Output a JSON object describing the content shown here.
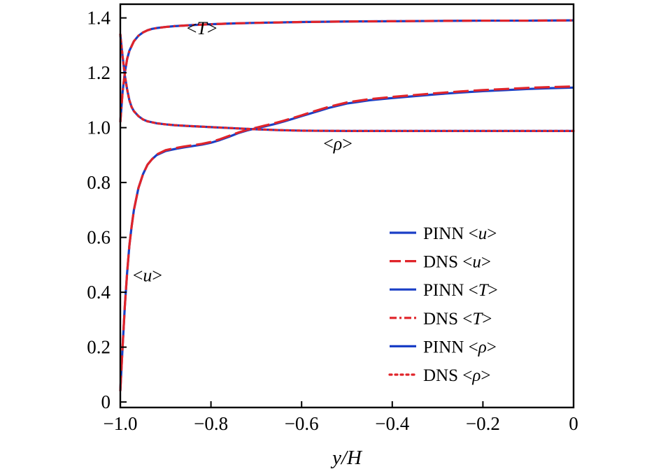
{
  "chart_data": {
    "type": "line",
    "title": "",
    "xlabel": "y/H",
    "ylabel": "",
    "xlim": [
      -1.0,
      0.0
    ],
    "ylim": [
      -0.02,
      1.45
    ],
    "grid": false,
    "legend_position": "bottom-right",
    "xticks": [
      {
        "value": -1.0,
        "label": "−1.0"
      },
      {
        "value": -0.8,
        "label": "−0.8"
      },
      {
        "value": -0.6,
        "label": "−0.6"
      },
      {
        "value": -0.4,
        "label": "−0.4"
      },
      {
        "value": -0.2,
        "label": "−0.2"
      },
      {
        "value": 0.0,
        "label": "0"
      }
    ],
    "yticks": [
      {
        "value": 0.0,
        "label": "0"
      },
      {
        "value": 0.2,
        "label": "0.2"
      },
      {
        "value": 0.4,
        "label": "0.4"
      },
      {
        "value": 0.6,
        "label": "0.6"
      },
      {
        "value": 0.8,
        "label": "0.8"
      },
      {
        "value": 1.0,
        "label": "1.0"
      },
      {
        "value": 1.2,
        "label": "1.2"
      },
      {
        "value": 1.4,
        "label": "1.4"
      }
    ],
    "series": [
      {
        "name": "PINN <u>",
        "legend_base": "PINN",
        "legend_var": "u",
        "color": "#1a3fc6",
        "style": "solid",
        "width": 3.2,
        "curve": "u",
        "x": [
          -1.0,
          -0.995,
          -0.99,
          -0.985,
          -0.98,
          -0.975,
          -0.97,
          -0.96,
          -0.95,
          -0.94,
          -0.93,
          -0.92,
          -0.9,
          -0.88,
          -0.86,
          -0.84,
          -0.82,
          -0.8,
          -0.78,
          -0.76,
          -0.74,
          -0.72,
          -0.7,
          -0.68,
          -0.66,
          -0.64,
          -0.62,
          -0.6,
          -0.58,
          -0.56,
          -0.54,
          -0.52,
          -0.5,
          -0.45,
          -0.4,
          -0.35,
          -0.3,
          -0.25,
          -0.2,
          -0.15,
          -0.1,
          -0.05,
          0.0
        ],
        "y": [
          0.04,
          0.2,
          0.35,
          0.47,
          0.57,
          0.64,
          0.7,
          0.78,
          0.83,
          0.865,
          0.885,
          0.9,
          0.915,
          0.922,
          0.928,
          0.933,
          0.938,
          0.945,
          0.955,
          0.967,
          0.98,
          0.99,
          0.998,
          1.005,
          1.013,
          1.022,
          1.032,
          1.042,
          1.052,
          1.062,
          1.072,
          1.08,
          1.088,
          1.1,
          1.108,
          1.115,
          1.122,
          1.128,
          1.133,
          1.137,
          1.141,
          1.144,
          1.146
        ]
      },
      {
        "name": "DNS <u>",
        "legend_base": "DNS",
        "legend_var": "u",
        "color": "#e0242a",
        "style": "longdash",
        "width": 3.2,
        "curve": "u",
        "x": [
          -1.0,
          -0.995,
          -0.99,
          -0.985,
          -0.98,
          -0.975,
          -0.97,
          -0.96,
          -0.95,
          -0.94,
          -0.93,
          -0.92,
          -0.9,
          -0.88,
          -0.86,
          -0.84,
          -0.82,
          -0.8,
          -0.78,
          -0.76,
          -0.74,
          -0.72,
          -0.7,
          -0.68,
          -0.66,
          -0.64,
          -0.62,
          -0.6,
          -0.58,
          -0.56,
          -0.54,
          -0.52,
          -0.5,
          -0.45,
          -0.4,
          -0.35,
          -0.3,
          -0.25,
          -0.2,
          -0.15,
          -0.1,
          -0.05,
          0.0
        ],
        "y": [
          0.04,
          0.2,
          0.35,
          0.47,
          0.57,
          0.64,
          0.7,
          0.78,
          0.83,
          0.865,
          0.885,
          0.902,
          0.918,
          0.925,
          0.931,
          0.936,
          0.941,
          0.948,
          0.958,
          0.97,
          0.982,
          0.992,
          1.0,
          1.008,
          1.016,
          1.025,
          1.035,
          1.045,
          1.056,
          1.066,
          1.076,
          1.084,
          1.092,
          1.104,
          1.112,
          1.119,
          1.126,
          1.132,
          1.137,
          1.141,
          1.145,
          1.148,
          1.15
        ]
      },
      {
        "name": "PINN <T>",
        "legend_base": "PINN",
        "legend_var": "T",
        "color": "#1a3fc6",
        "style": "solid",
        "width": 3.2,
        "curve": "T",
        "x": [
          -1.0,
          -0.995,
          -0.99,
          -0.985,
          -0.98,
          -0.97,
          -0.96,
          -0.95,
          -0.94,
          -0.93,
          -0.92,
          -0.9,
          -0.88,
          -0.86,
          -0.84,
          -0.8,
          -0.75,
          -0.7,
          -0.6,
          -0.5,
          -0.4,
          -0.3,
          -0.2,
          -0.1,
          0.0
        ],
        "y": [
          1.02,
          1.13,
          1.2,
          1.25,
          1.28,
          1.315,
          1.335,
          1.347,
          1.355,
          1.36,
          1.363,
          1.367,
          1.37,
          1.372,
          1.374,
          1.377,
          1.38,
          1.382,
          1.385,
          1.387,
          1.388,
          1.389,
          1.39,
          1.39,
          1.391
        ]
      },
      {
        "name": "DNS <T>",
        "legend_base": "DNS",
        "legend_var": "T",
        "color": "#e0242a",
        "style": "dashdot",
        "width": 3.2,
        "curve": "T",
        "x": [
          -1.0,
          -0.995,
          -0.99,
          -0.985,
          -0.98,
          -0.97,
          -0.96,
          -0.95,
          -0.94,
          -0.93,
          -0.92,
          -0.9,
          -0.88,
          -0.86,
          -0.84,
          -0.8,
          -0.75,
          -0.7,
          -0.6,
          -0.5,
          -0.4,
          -0.3,
          -0.2,
          -0.1,
          0.0
        ],
        "y": [
          1.02,
          1.13,
          1.2,
          1.25,
          1.28,
          1.315,
          1.335,
          1.347,
          1.355,
          1.36,
          1.363,
          1.367,
          1.37,
          1.372,
          1.374,
          1.377,
          1.38,
          1.382,
          1.385,
          1.387,
          1.388,
          1.389,
          1.39,
          1.39,
          1.391
        ]
      },
      {
        "name": "PINN <ρ>",
        "legend_base": "PINN",
        "legend_var": "ρ",
        "color": "#1a3fc6",
        "style": "solid",
        "width": 3.2,
        "curve": "rho",
        "x": [
          -1.0,
          -0.995,
          -0.99,
          -0.985,
          -0.98,
          -0.975,
          -0.97,
          -0.96,
          -0.95,
          -0.94,
          -0.92,
          -0.9,
          -0.88,
          -0.85,
          -0.8,
          -0.75,
          -0.7,
          -0.65,
          -0.6,
          -0.5,
          -0.4,
          -0.3,
          -0.2,
          -0.1,
          0.0
        ],
        "y": [
          1.34,
          1.26,
          1.19,
          1.14,
          1.1,
          1.075,
          1.06,
          1.042,
          1.03,
          1.023,
          1.016,
          1.012,
          1.009,
          1.006,
          1.002,
          0.998,
          0.994,
          0.991,
          0.989,
          0.988,
          0.988,
          0.988,
          0.988,
          0.988,
          0.988
        ]
      },
      {
        "name": "DNS <ρ>",
        "legend_base": "DNS",
        "legend_var": "ρ",
        "color": "#e0242a",
        "style": "dotted",
        "width": 3.2,
        "curve": "rho",
        "x": [
          -1.0,
          -0.995,
          -0.99,
          -0.985,
          -0.98,
          -0.975,
          -0.97,
          -0.96,
          -0.95,
          -0.94,
          -0.92,
          -0.9,
          -0.88,
          -0.85,
          -0.8,
          -0.75,
          -0.7,
          -0.65,
          -0.6,
          -0.5,
          -0.4,
          -0.3,
          -0.2,
          -0.1,
          0.0
        ],
        "y": [
          1.34,
          1.26,
          1.19,
          1.14,
          1.1,
          1.075,
          1.06,
          1.042,
          1.03,
          1.023,
          1.016,
          1.012,
          1.009,
          1.006,
          1.002,
          0.998,
          0.994,
          0.991,
          0.989,
          0.988,
          0.988,
          0.988,
          0.988,
          0.988,
          0.988
        ]
      }
    ],
    "annotations": [
      {
        "text": "<T>",
        "base": "<",
        "var": "T",
        "close": ">",
        "x": -0.82,
        "y": 1.34
      },
      {
        "text": "<ρ>",
        "base": "<",
        "var": "ρ",
        "close": ">",
        "x": -0.52,
        "y": 0.92
      },
      {
        "text": "<u>",
        "base": "<",
        "var": "u",
        "close": ">",
        "x": -0.94,
        "y": 0.44
      }
    ]
  }
}
